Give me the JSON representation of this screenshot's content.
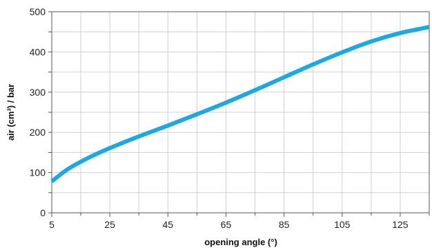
{
  "chart_data": {
    "type": "line",
    "xlabel": "opening angle (°)",
    "ylabel": "air (cm³) / bar",
    "xlim": [
      5,
      135
    ],
    "ylim": [
      0,
      500
    ],
    "x_ticks": [
      5,
      25,
      45,
      65,
      85,
      105,
      125
    ],
    "y_ticks": [
      0,
      100,
      200,
      300,
      400,
      500
    ],
    "grid": true,
    "series": [
      {
        "color": "#1ba9e6",
        "x": [
          5,
          10,
          15,
          20,
          25,
          35,
          45,
          55,
          65,
          75,
          85,
          95,
          105,
          115,
          125,
          135
        ],
        "y": [
          78,
          106,
          127,
          145,
          161,
          190,
          217,
          245,
          274,
          305,
          337,
          369,
          399,
          426,
          447,
          462
        ]
      }
    ]
  }
}
